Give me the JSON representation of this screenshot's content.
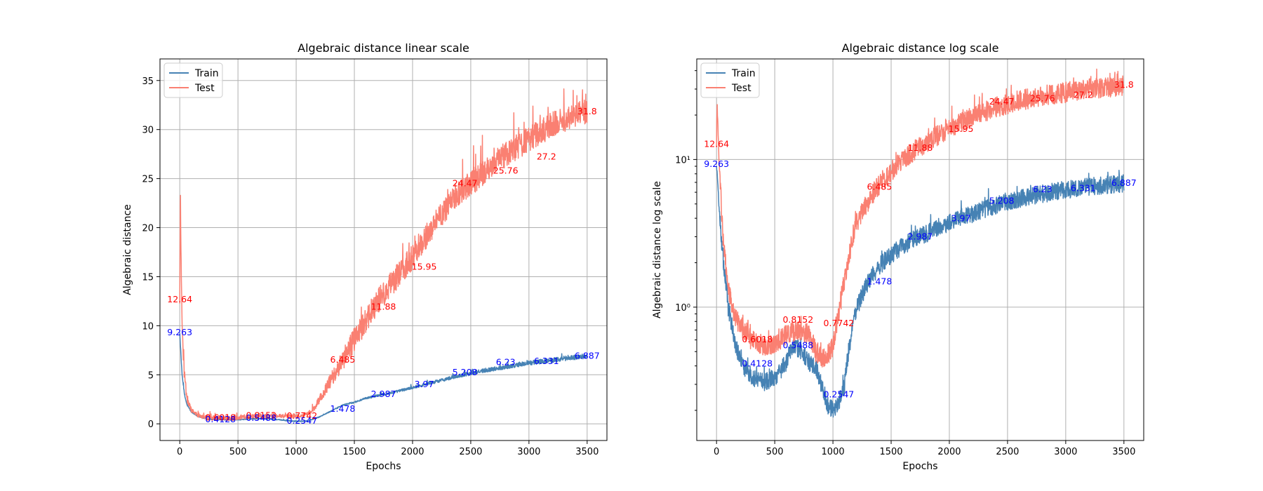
{
  "figure": {
    "background": "#ffffff"
  },
  "chart_data": [
    {
      "type": "line",
      "title": "Algebraic distance linear scale",
      "xlabel": "Epochs",
      "ylabel": "Algebraic distance",
      "yscale": "linear",
      "xlim": [
        -170,
        3670
      ],
      "ylim": [
        -1.7,
        37.2
      ],
      "xticks": [
        0,
        500,
        1000,
        1500,
        2000,
        2500,
        3000,
        3500
      ],
      "yticks": [
        0,
        5,
        10,
        15,
        20,
        25,
        30,
        35
      ],
      "grid": true,
      "legend": {
        "position": "upper-left",
        "entries": [
          "Train",
          "Test"
        ]
      },
      "series": [
        {
          "name": "Train",
          "color": "#4682b4",
          "x": [
            0,
            10,
            20,
            40,
            60,
            100,
            150,
            200,
            250,
            300,
            400,
            500,
            600,
            700,
            800,
            900,
            1000,
            1100,
            1200,
            1300,
            1400,
            1500,
            1600,
            1700,
            1800,
            1900,
            2000,
            2200,
            2400,
            2600,
            2800,
            3000,
            3200,
            3400,
            3500
          ],
          "values": [
            9.263,
            7.0,
            5.0,
            3.0,
            2.0,
            1.2,
            0.8,
            0.6,
            0.5,
            0.45,
            0.42,
            0.41,
            0.5,
            0.52,
            0.48,
            0.35,
            0.25,
            0.3,
            0.7,
            1.3,
            1.9,
            2.2,
            2.6,
            2.9,
            3.1,
            3.4,
            3.7,
            4.3,
            4.9,
            5.4,
            5.8,
            6.2,
            6.5,
            6.8,
            6.887
          ],
          "noise": 0.3
        },
        {
          "name": "Test",
          "color": "#fa8072",
          "x": [
            0,
            5,
            10,
            20,
            40,
            60,
            100,
            150,
            200,
            300,
            400,
            500,
            600,
            700,
            800,
            900,
            1000,
            1100,
            1150,
            1200,
            1300,
            1400,
            1500,
            1600,
            1700,
            1800,
            1900,
            2000,
            2200,
            2400,
            2600,
            2800,
            3000,
            3200,
            3400,
            3500
          ],
          "values": [
            12.64,
            24.6,
            18.0,
            10.0,
            5.0,
            2.5,
            1.4,
            0.9,
            0.7,
            0.62,
            0.6,
            0.62,
            0.75,
            0.8,
            0.82,
            0.8,
            0.75,
            1.0,
            1.5,
            2.5,
            4.5,
            6.5,
            8.5,
            10.5,
            12.5,
            14.0,
            15.5,
            17.0,
            20.5,
            23.5,
            25.5,
            27.5,
            29.0,
            30.5,
            31.5,
            31.8
          ],
          "noise": 1.3
        }
      ],
      "annotations": [
        {
          "x": 0,
          "y": 12.64,
          "text": "12.64",
          "color": "red"
        },
        {
          "x": 0,
          "y": 9.263,
          "text": "9.263",
          "color": "blue"
        },
        {
          "x": 350,
          "y": 0.6018,
          "text": "0.6018",
          "color": "red"
        },
        {
          "x": 350,
          "y": 0.4128,
          "text": "0.4128",
          "color": "blue"
        },
        {
          "x": 700,
          "y": 0.8152,
          "text": "0.8152",
          "color": "red"
        },
        {
          "x": 700,
          "y": 0.5488,
          "text": "0.5488",
          "color": "blue"
        },
        {
          "x": 1050,
          "y": 0.7742,
          "text": "0.7742",
          "color": "red"
        },
        {
          "x": 1050,
          "y": 0.2547,
          "text": "0.2547",
          "color": "blue"
        },
        {
          "x": 1400,
          "y": 6.485,
          "text": "6.485",
          "color": "red"
        },
        {
          "x": 1400,
          "y": 1.478,
          "text": "1.478",
          "color": "blue"
        },
        {
          "x": 1750,
          "y": 11.88,
          "text": "11.88",
          "color": "red"
        },
        {
          "x": 1750,
          "y": 2.987,
          "text": "2.987",
          "color": "blue"
        },
        {
          "x": 2100,
          "y": 15.95,
          "text": "15.95",
          "color": "red"
        },
        {
          "x": 2100,
          "y": 3.97,
          "text": "3.97",
          "color": "blue"
        },
        {
          "x": 2450,
          "y": 24.47,
          "text": "24.47",
          "color": "red"
        },
        {
          "x": 2450,
          "y": 5.208,
          "text": "5.208",
          "color": "blue"
        },
        {
          "x": 2800,
          "y": 25.76,
          "text": "25.76",
          "color": "red"
        },
        {
          "x": 2800,
          "y": 6.23,
          "text": "6.23",
          "color": "blue"
        },
        {
          "x": 3150,
          "y": 27.2,
          "text": "27.2",
          "color": "red"
        },
        {
          "x": 3150,
          "y": 6.331,
          "text": "6.331",
          "color": "blue"
        },
        {
          "x": 3500,
          "y": 31.8,
          "text": "31.8",
          "color": "red"
        },
        {
          "x": 3500,
          "y": 6.887,
          "text": "6.887",
          "color": "blue"
        }
      ]
    },
    {
      "type": "line",
      "title": "Algebraic distance log scale",
      "xlabel": "Epochs",
      "ylabel": "Algebraic distance log scale",
      "yscale": "log",
      "xlim": [
        -170,
        3670
      ],
      "ylim": [
        0.125,
        48
      ],
      "xticks": [
        0,
        500,
        1000,
        1500,
        2000,
        2500,
        3000,
        3500
      ],
      "yticks": [
        1,
        10
      ],
      "ytick_labels": [
        "10⁰",
        "10¹"
      ],
      "grid": true,
      "legend": {
        "position": "upper-left",
        "entries": [
          "Train",
          "Test"
        ]
      },
      "series": [
        {
          "name": "Train",
          "color": "#4682b4",
          "x": [
            0,
            10,
            20,
            40,
            60,
            100,
            150,
            200,
            250,
            300,
            350,
            400,
            500,
            600,
            650,
            700,
            800,
            850,
            900,
            950,
            1000,
            1050,
            1100,
            1150,
            1200,
            1300,
            1400,
            1500,
            1600,
            1700,
            1800,
            1900,
            2000,
            2200,
            2400,
            2600,
            2800,
            3000,
            3200,
            3400,
            3500
          ],
          "values": [
            9.263,
            7.0,
            5.0,
            3.0,
            2.0,
            1.0,
            0.6,
            0.45,
            0.38,
            0.34,
            0.32,
            0.31,
            0.33,
            0.42,
            0.55,
            0.52,
            0.42,
            0.4,
            0.3,
            0.22,
            0.2,
            0.22,
            0.3,
            0.6,
            0.95,
            1.45,
            1.9,
            2.25,
            2.6,
            2.9,
            3.15,
            3.45,
            3.75,
            4.3,
            4.9,
            5.4,
            5.85,
            6.25,
            6.55,
            6.8,
            6.887
          ],
          "noise": 0.14
        },
        {
          "name": "Test",
          "color": "#fa8072",
          "x": [
            0,
            5,
            10,
            20,
            40,
            60,
            100,
            150,
            200,
            300,
            400,
            500,
            600,
            700,
            800,
            850,
            900,
            950,
            1000,
            1050,
            1100,
            1150,
            1200,
            1300,
            1400,
            1500,
            1600,
            1700,
            1800,
            1900,
            2000,
            2200,
            2400,
            2600,
            2800,
            3000,
            3200,
            3400,
            3500
          ],
          "values": [
            12.64,
            24.6,
            18.0,
            10.0,
            5.0,
            2.5,
            1.3,
            0.9,
            0.75,
            0.6,
            0.55,
            0.57,
            0.65,
            0.7,
            0.65,
            0.5,
            0.45,
            0.45,
            0.55,
            0.9,
            1.5,
            2.5,
            3.5,
            5.2,
            6.8,
            8.3,
            10.0,
            11.5,
            13.0,
            14.5,
            16.0,
            19.5,
            22.5,
            25.0,
            27.0,
            28.5,
            30.0,
            31.0,
            31.8
          ],
          "noise": 0.16
        }
      ],
      "annotations": [
        {
          "x": 0,
          "y": 12.64,
          "text": "12.64",
          "color": "red"
        },
        {
          "x": 0,
          "y": 9.263,
          "text": "9.263",
          "color": "blue"
        },
        {
          "x": 350,
          "y": 0.6018,
          "text": "0.6018",
          "color": "red"
        },
        {
          "x": 350,
          "y": 0.4128,
          "text": "0.4128",
          "color": "blue"
        },
        {
          "x": 700,
          "y": 0.8152,
          "text": "0.8152",
          "color": "red"
        },
        {
          "x": 700,
          "y": 0.5488,
          "text": "0.5488",
          "color": "blue"
        },
        {
          "x": 1050,
          "y": 0.7742,
          "text": "0.7742",
          "color": "red"
        },
        {
          "x": 1050,
          "y": 0.2547,
          "text": "0.2547",
          "color": "blue"
        },
        {
          "x": 1400,
          "y": 6.485,
          "text": "6.485",
          "color": "red"
        },
        {
          "x": 1400,
          "y": 1.478,
          "text": "1.478",
          "color": "blue"
        },
        {
          "x": 1750,
          "y": 11.88,
          "text": "11.88",
          "color": "red"
        },
        {
          "x": 1750,
          "y": 2.987,
          "text": "2.987",
          "color": "blue"
        },
        {
          "x": 2100,
          "y": 15.95,
          "text": "15.95",
          "color": "red"
        },
        {
          "x": 2100,
          "y": 3.97,
          "text": "3.97",
          "color": "blue"
        },
        {
          "x": 2450,
          "y": 24.47,
          "text": "24.47",
          "color": "red"
        },
        {
          "x": 2450,
          "y": 5.208,
          "text": "5.208",
          "color": "blue"
        },
        {
          "x": 2800,
          "y": 25.76,
          "text": "25.76",
          "color": "red"
        },
        {
          "x": 2800,
          "y": 6.23,
          "text": "6.23",
          "color": "blue"
        },
        {
          "x": 3150,
          "y": 27.2,
          "text": "27.2",
          "color": "red"
        },
        {
          "x": 3150,
          "y": 6.331,
          "text": "6.331",
          "color": "blue"
        },
        {
          "x": 3500,
          "y": 31.8,
          "text": "31.8",
          "color": "red"
        },
        {
          "x": 3500,
          "y": 6.887,
          "text": "6.887",
          "color": "blue"
        }
      ]
    }
  ]
}
